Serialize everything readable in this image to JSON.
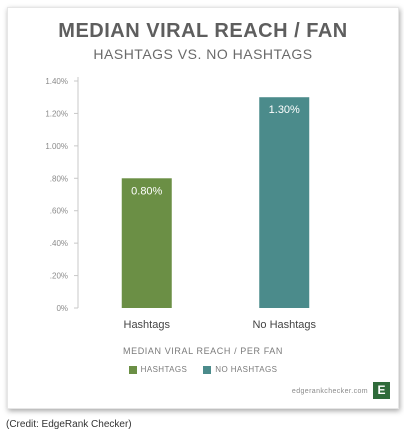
{
  "chart_data": {
    "type": "bar",
    "title": "MEDIAN VIRAL REACH / FAN",
    "subtitle": "HASHTAGS VS. NO HASHTAGS",
    "categories": [
      "Hashtags",
      "No Hashtags"
    ],
    "values": [
      0.8,
      1.3
    ],
    "data_labels": [
      "0.80%",
      "1.30%"
    ],
    "bar_colors": [
      "#6b8f45",
      "#4b8b8b"
    ],
    "ylim": [
      0,
      1.4
    ],
    "yticks": [
      0,
      0.2,
      0.4,
      0.6,
      0.8,
      1.0,
      1.2,
      1.4
    ],
    "ytick_labels": [
      "0%",
      ".20%",
      ".40%",
      ".60%",
      ".80%",
      "1.00%",
      "1.20%",
      "1.40%"
    ],
    "xlabel": "MEDIAN VIRAL REACH / PER FAN",
    "grid": false,
    "legend": {
      "placement": "bottom-center",
      "entries": [
        {
          "label": "HASHTAGS",
          "color": "#6b8f45"
        },
        {
          "label": "NO HASHTAGS",
          "color": "#4b8b8b"
        }
      ]
    }
  },
  "branding": {
    "site": "edgerankchecker.com",
    "logo_letter": "E",
    "logo_color": "#2f6b3a"
  },
  "caption": "(Credit: EdgeRank Checker)",
  "colors": {
    "axis": "#c8c8c8",
    "tick_text": "#8a8a8a",
    "category_text": "#444444",
    "value_label_text": "#ffffff"
  }
}
